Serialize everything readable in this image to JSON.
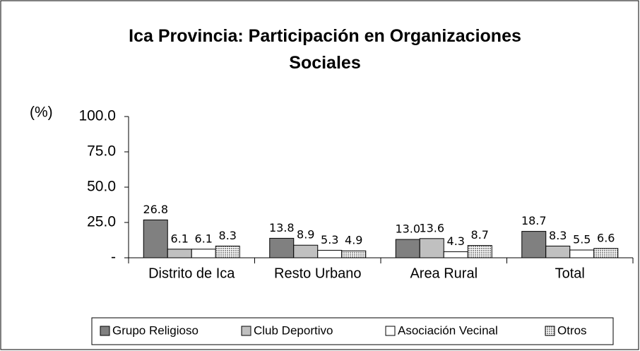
{
  "chart_data": {
    "type": "bar",
    "title": "Ica Provincia: Participación en Organizaciones Sociales",
    "y_label": "(%)",
    "categories": [
      "Distrito de Ica",
      "Resto Urbano",
      "Area Rural",
      "Total"
    ],
    "series": [
      {
        "name": "Grupo Religioso",
        "color": "#808080",
        "values": [
          26.8,
          13.8,
          13.0,
          18.7
        ],
        "value_labels": [
          "26.8",
          "13.8",
          "13.0",
          "18.7"
        ]
      },
      {
        "name": "Club Deportivo",
        "color": "#c0c0c0",
        "values": [
          6.1,
          8.9,
          13.6,
          8.3
        ],
        "value_labels": [
          "6.1",
          "8.9",
          "13.6",
          "8.3"
        ]
      },
      {
        "name": "Asociación Vecinal",
        "color": "#ffffff",
        "values": [
          6.1,
          5.3,
          4.3,
          5.5
        ],
        "value_labels": [
          "6.1",
          "5.3",
          "4.3",
          "5.5"
        ]
      },
      {
        "name": "Otros",
        "color": "#909090",
        "pattern": "dots",
        "values": [
          8.3,
          4.9,
          8.7,
          6.6
        ],
        "value_labels": [
          "8.3",
          "4.9",
          "8.7",
          "6.6"
        ]
      }
    ],
    "ylim": [
      0,
      100
    ],
    "yticks": [
      {
        "value": 0,
        "label": "-"
      },
      {
        "value": 25,
        "label": "25.0"
      },
      {
        "value": 50,
        "label": "50.0"
      },
      {
        "value": 75,
        "label": "75.0"
      },
      {
        "value": 100,
        "label": "100.0"
      }
    ],
    "grid": false,
    "legend": "bottom"
  }
}
